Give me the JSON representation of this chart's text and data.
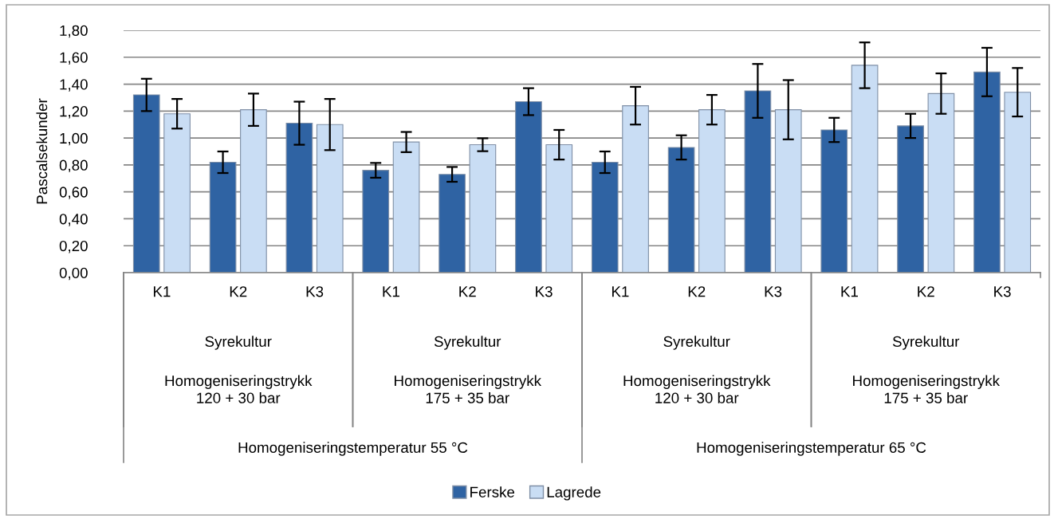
{
  "chart_data": {
    "type": "bar",
    "ylabel": "Pascalsekunder",
    "categories": [
      "K1",
      "K2",
      "K3",
      "K1",
      "K2",
      "K3",
      "K1",
      "K2",
      "K3",
      "K1",
      "K2",
      "K3"
    ],
    "series": [
      {
        "name": "Ferske",
        "color": "#2f63a3",
        "values": [
          1.32,
          0.82,
          1.11,
          0.76,
          0.73,
          1.27,
          0.82,
          0.93,
          1.35,
          1.06,
          1.09,
          1.49
        ],
        "errors": [
          0.12,
          0.08,
          0.16,
          0.055,
          0.055,
          0.1,
          0.08,
          0.09,
          0.2,
          0.09,
          0.09,
          0.18
        ]
      },
      {
        "name": "Lagrede",
        "color": "#c9ddf4",
        "values": [
          1.18,
          1.21,
          1.1,
          0.97,
          0.95,
          0.95,
          1.24,
          1.21,
          1.21,
          1.54,
          1.33,
          1.34
        ],
        "errors": [
          0.11,
          0.12,
          0.19,
          0.075,
          0.048,
          0.11,
          0.14,
          0.11,
          0.22,
          0.17,
          0.15,
          0.18
        ]
      }
    ],
    "ylim": [
      0,
      1.8
    ],
    "yticks": [
      {
        "value": 0,
        "label": "0,00"
      },
      {
        "value": 0.2,
        "label": "0,20"
      },
      {
        "value": 0.4,
        "label": "0,40"
      },
      {
        "value": 0.6,
        "label": "0,60"
      },
      {
        "value": 0.8,
        "label": "0,80"
      },
      {
        "value": 1.0,
        "label": "1,00"
      },
      {
        "value": 1.2,
        "label": "1,20"
      },
      {
        "value": 1.4,
        "label": "1,40"
      },
      {
        "value": 1.6,
        "label": "1,60"
      },
      {
        "value": 1.8,
        "label": "1,80"
      }
    ],
    "grid": "y",
    "legend": "bottom",
    "annotations": [
      "Syrekultur",
      "Syrekultur",
      "Syrekultur",
      "Syrekultur",
      "Homogeniseringstrykk\n120 + 30 bar",
      "Homogeniseringstrykk\n175 + 35 bar",
      "Homogeniseringstrykk\n120 + 30 bar",
      "Homogeniseringstrykk\n175 + 35 bar",
      "Homogeniseringstemperatur 55 °C",
      "Homogeniseringstemperatur 65 °C"
    ]
  }
}
